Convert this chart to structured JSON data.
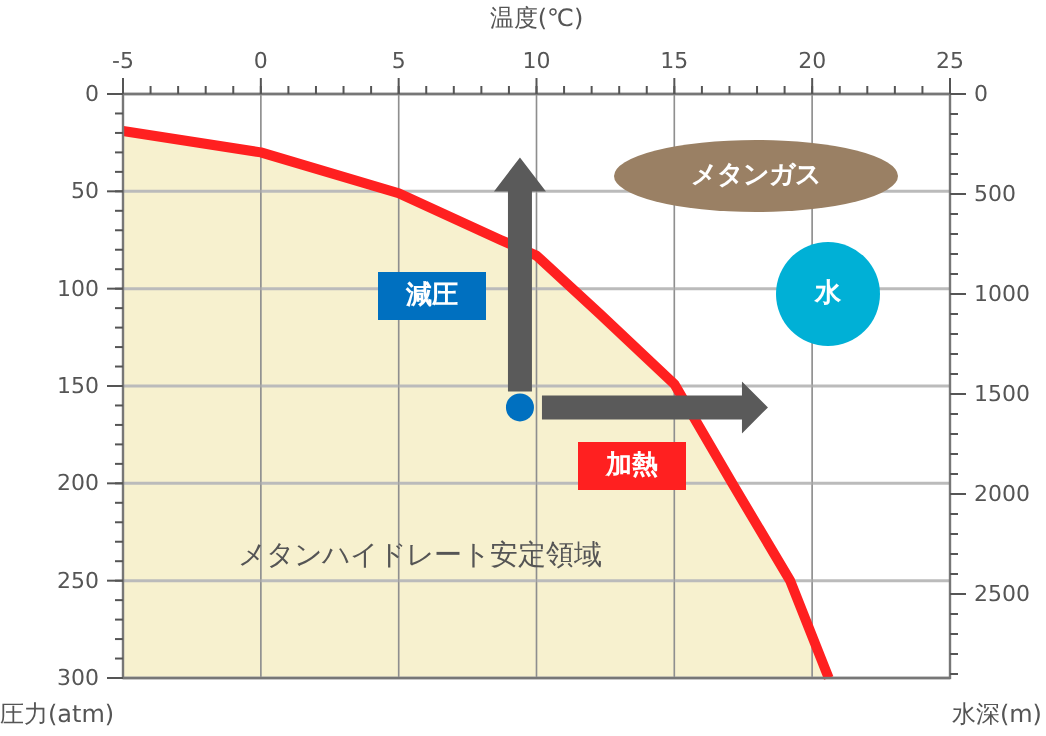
{
  "chart_data": {
    "type": "line",
    "xlabel": "温度(℃)",
    "ylabel": "圧力(atm)",
    "y2label": "水深(m)",
    "xlim": [
      -5,
      25
    ],
    "xticks": [
      -5,
      0,
      5,
      10,
      15,
      20,
      25
    ],
    "ylim": [
      300,
      0
    ],
    "yticks": [
      0,
      50,
      100,
      150,
      200,
      250,
      300
    ],
    "y2lim": [
      2920,
      0
    ],
    "y2ticks": [
      0,
      500,
      1000,
      1500,
      2000,
      2500
    ],
    "grid": true,
    "series": [
      {
        "color": "#ff2020",
        "x": [
          -5,
          0,
          5,
          8.7,
          10,
          12.3,
          15,
          17.1,
          19.2,
          20.6
        ],
        "values": [
          19,
          30,
          51,
          75,
          83,
          113,
          149,
          200,
          250,
          300
        ]
      },
      {
        "type": "scatter",
        "color": "#0070c0",
        "marker": "circle",
        "x": [
          9.4
        ],
        "values": [
          161
        ]
      }
    ],
    "annotations": [
      "メタンハイドレート安定領域",
      "減圧",
      "加熱",
      "メタンガス",
      "水"
    ]
  }
}
